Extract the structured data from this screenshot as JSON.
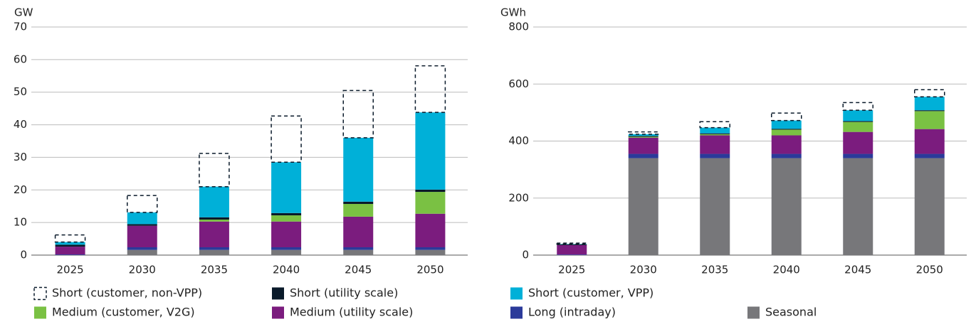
{
  "chart_data": [
    {
      "type": "stacked_bar",
      "y_label": "GW",
      "categories": [
        "2025",
        "2030",
        "2035",
        "2040",
        "2045",
        "2050"
      ],
      "ylim": [
        0,
        70
      ],
      "yticks": [
        0,
        10,
        20,
        30,
        40,
        50,
        60,
        70
      ],
      "grid": true,
      "series": [
        {
          "name": "Seasonal",
          "color": "#77777a",
          "values": [
            0,
            1.6,
            1.6,
            1.6,
            1.6,
            1.6
          ]
        },
        {
          "name": "Long (intraday)",
          "color": "#2b3a9a",
          "values": [
            0.2,
            0.8,
            0.8,
            0.8,
            0.8,
            0.8
          ]
        },
        {
          "name": "Medium (utility scale)",
          "color": "#7b1c7e",
          "values": [
            2.4,
            6.6,
            7.9,
            7.9,
            9.4,
            10.3
          ]
        },
        {
          "name": "Medium (customer, V2G)",
          "color": "#7ac143",
          "values": [
            0,
            0,
            0.6,
            1.9,
            3.9,
            6.7
          ]
        },
        {
          "name": "Short (utility scale)",
          "color": "#0a1a2a",
          "values": [
            0.6,
            0.5,
            0.7,
            0.7,
            0.7,
            0.7
          ]
        },
        {
          "name": "Short (customer, VPP)",
          "color": "#00b0d8",
          "values": [
            0.8,
            3.6,
            9.4,
            15.6,
            19.6,
            23.7
          ]
        },
        {
          "name": "Short (customer, non-VPP)",
          "color": "#0a1a2a",
          "style": "dashed",
          "values": [
            2.2,
            5.2,
            10.2,
            14.2,
            14.5,
            14.3
          ]
        }
      ]
    },
    {
      "type": "stacked_bar",
      "y_label": "GWh",
      "categories": [
        "2025",
        "2030",
        "2035",
        "2040",
        "2045",
        "2050"
      ],
      "ylim": [
        0,
        800
      ],
      "yticks": [
        0,
        200,
        400,
        600,
        800
      ],
      "grid": true,
      "series": [
        {
          "color": "#77777a",
          "values": [
            0,
            340,
            340,
            340,
            340,
            340
          ]
        },
        {
          "color": "#2b3a9a",
          "values": [
            2,
            15,
            15,
            15,
            15,
            15
          ]
        },
        {
          "color": "#7b1c7e",
          "values": [
            33,
            57,
            65,
            65,
            77,
            87
          ]
        },
        {
          "color": "#7ac143",
          "values": [
            0,
            3,
            4,
            20,
            35,
            63
          ]
        },
        {
          "color": "#0a1a2a",
          "values": [
            3,
            3,
            3,
            3,
            3,
            3
          ]
        },
        {
          "color": "#00b0d8",
          "values": [
            1,
            6,
            20,
            29,
            38,
            47
          ]
        },
        {
          "color": "#0a1a2a",
          "style": "dashed",
          "values": [
            3,
            8,
            21,
            26,
            27,
            25
          ]
        }
      ]
    }
  ]
}
